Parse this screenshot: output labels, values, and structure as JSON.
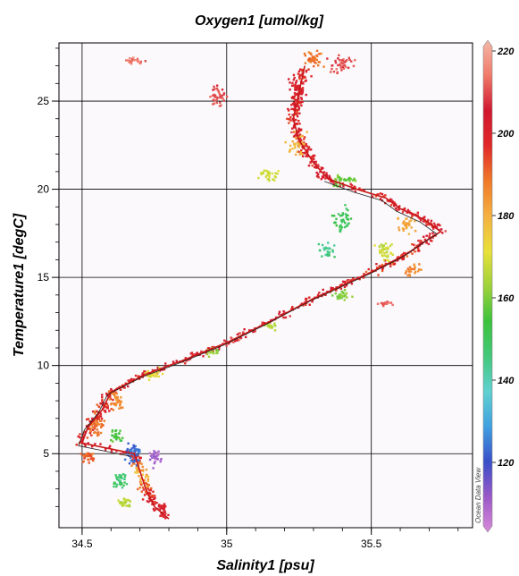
{
  "chart_data": {
    "type": "scatter",
    "title": "Oxygen1 [umol/kg]",
    "xlabel": "Salinity1 [psu]",
    "ylabel": "Temperature1 [degC]",
    "xlim": [
      34.42,
      35.85
    ],
    "ylim": [
      0.8,
      28.3
    ],
    "x_ticks": [
      34.5,
      35,
      35.5
    ],
    "x_tick_labels": [
      "34.5",
      "35",
      "35.5"
    ],
    "y_ticks": [
      5,
      10,
      15,
      20,
      25
    ],
    "y_tick_labels": [
      "5",
      "10",
      "15",
      "20",
      "25"
    ],
    "grid": true,
    "colorbar": {
      "variable": "Oxygen1 [umol/kg]",
      "range": [
        105,
        220
      ],
      "ticks": [
        120,
        140,
        160,
        180,
        200,
        220
      ],
      "tick_labels": [
        "120",
        "140",
        "160",
        "180",
        "200",
        "220"
      ],
      "colormap": [
        "#d98ad9",
        "#9b59c8",
        "#3a4fc8",
        "#3fa0e0",
        "#5fd0d0",
        "#42c87a",
        "#3cc23c",
        "#9ed23a",
        "#e8e03a",
        "#f5b040",
        "#f07a28",
        "#e02828",
        "#d01830",
        "#f07a6a",
        "#f4b8a8"
      ]
    },
    "watermark": "Ocean Data View",
    "profile_points": [
      {
        "s": 34.8,
        "t": 1.3,
        "o": 202
      },
      {
        "s": 34.75,
        "t": 2.0,
        "o": 205
      },
      {
        "s": 34.72,
        "t": 3.0,
        "o": 190
      },
      {
        "s": 34.7,
        "t": 4.0,
        "o": 178
      },
      {
        "s": 34.68,
        "t": 5.0,
        "o": 205
      },
      {
        "s": 34.5,
        "t": 5.6,
        "o": 200
      },
      {
        "s": 34.52,
        "t": 6.5,
        "o": 195
      },
      {
        "s": 34.57,
        "t": 7.5,
        "o": 195
      },
      {
        "s": 34.6,
        "t": 8.5,
        "o": 198
      },
      {
        "s": 34.72,
        "t": 9.5,
        "o": 200
      },
      {
        "s": 34.85,
        "t": 10.3,
        "o": 202
      },
      {
        "s": 35.0,
        "t": 11.3,
        "o": 205
      },
      {
        "s": 35.15,
        "t": 12.5,
        "o": 205
      },
      {
        "s": 35.3,
        "t": 13.8,
        "o": 200
      },
      {
        "s": 35.5,
        "t": 15.3,
        "o": 195
      },
      {
        "s": 35.62,
        "t": 16.3,
        "o": 195
      },
      {
        "s": 35.7,
        "t": 17.2,
        "o": 200
      },
      {
        "s": 35.74,
        "t": 17.6,
        "o": 205
      },
      {
        "s": 35.68,
        "t": 18.3,
        "o": 198
      },
      {
        "s": 35.6,
        "t": 18.9,
        "o": 200
      },
      {
        "s": 35.55,
        "t": 19.5,
        "o": 198
      },
      {
        "s": 35.45,
        "t": 20.0,
        "o": 200
      },
      {
        "s": 35.35,
        "t": 20.6,
        "o": 200
      },
      {
        "s": 35.3,
        "t": 21.5,
        "o": 200
      },
      {
        "s": 35.25,
        "t": 22.8,
        "o": 200
      },
      {
        "s": 35.23,
        "t": 24.0,
        "o": 198
      },
      {
        "s": 35.25,
        "t": 25.5,
        "o": 197
      },
      {
        "s": 35.27,
        "t": 27.0,
        "o": 195
      }
    ],
    "scatter_clusters": [
      {
        "s": 35.3,
        "t": 27.4,
        "o": 188,
        "ds": 0.05,
        "dt": 0.8,
        "n": 40
      },
      {
        "s": 35.4,
        "t": 27.0,
        "o": 208,
        "ds": 0.06,
        "dt": 1.0,
        "n": 40
      },
      {
        "s": 35.24,
        "t": 25.5,
        "o": 200,
        "ds": 0.05,
        "dt": 1.5,
        "n": 50
      },
      {
        "s": 34.97,
        "t": 25.3,
        "o": 208,
        "ds": 0.05,
        "dt": 1.0,
        "n": 35
      },
      {
        "s": 34.68,
        "t": 27.3,
        "o": 212,
        "ds": 0.05,
        "dt": 0.3,
        "n": 20
      },
      {
        "s": 35.25,
        "t": 22.5,
        "o": 178,
        "ds": 0.06,
        "dt": 1.0,
        "n": 35
      },
      {
        "s": 35.15,
        "t": 20.8,
        "o": 168,
        "ds": 0.07,
        "dt": 0.7,
        "n": 30
      },
      {
        "s": 35.4,
        "t": 20.5,
        "o": 158,
        "ds": 0.08,
        "dt": 0.8,
        "n": 35
      },
      {
        "s": 35.4,
        "t": 18.3,
        "o": 150,
        "ds": 0.06,
        "dt": 1.2,
        "n": 45
      },
      {
        "s": 35.35,
        "t": 16.5,
        "o": 145,
        "ds": 0.06,
        "dt": 0.7,
        "n": 30
      },
      {
        "s": 35.55,
        "t": 16.5,
        "o": 168,
        "ds": 0.06,
        "dt": 1.2,
        "n": 45
      },
      {
        "s": 35.62,
        "t": 18.0,
        "o": 180,
        "ds": 0.05,
        "dt": 0.8,
        "n": 35
      },
      {
        "s": 35.65,
        "t": 15.5,
        "o": 185,
        "ds": 0.05,
        "dt": 0.6,
        "n": 25
      },
      {
        "s": 35.4,
        "t": 14.0,
        "o": 160,
        "ds": 0.05,
        "dt": 0.5,
        "n": 25
      },
      {
        "s": 35.55,
        "t": 13.5,
        "o": 210,
        "ds": 0.04,
        "dt": 0.2,
        "n": 15
      },
      {
        "s": 35.15,
        "t": 12.2,
        "o": 165,
        "ds": 0.04,
        "dt": 0.4,
        "n": 20
      },
      {
        "s": 34.95,
        "t": 10.8,
        "o": 160,
        "ds": 0.04,
        "dt": 0.4,
        "n": 20
      },
      {
        "s": 34.75,
        "t": 9.5,
        "o": 170,
        "ds": 0.05,
        "dt": 0.5,
        "n": 25
      },
      {
        "s": 34.62,
        "t": 8.0,
        "o": 185,
        "ds": 0.05,
        "dt": 0.8,
        "n": 35
      },
      {
        "s": 34.55,
        "t": 6.5,
        "o": 188,
        "ds": 0.04,
        "dt": 0.8,
        "n": 35
      },
      {
        "s": 34.62,
        "t": 6.0,
        "o": 155,
        "ds": 0.04,
        "dt": 0.6,
        "n": 25
      },
      {
        "s": 34.52,
        "t": 4.8,
        "o": 190,
        "ds": 0.04,
        "dt": 0.5,
        "n": 30
      },
      {
        "s": 34.68,
        "t": 5.0,
        "o": 125,
        "ds": 0.04,
        "dt": 1.2,
        "n": 55
      },
      {
        "s": 34.75,
        "t": 4.8,
        "o": 112,
        "ds": 0.03,
        "dt": 0.8,
        "n": 30
      },
      {
        "s": 34.63,
        "t": 3.5,
        "o": 148,
        "ds": 0.04,
        "dt": 0.8,
        "n": 35
      },
      {
        "s": 34.65,
        "t": 2.3,
        "o": 165,
        "ds": 0.04,
        "dt": 0.6,
        "n": 25
      },
      {
        "s": 34.78,
        "t": 2.0,
        "o": 200,
        "ds": 0.02,
        "dt": 0.5,
        "n": 15
      }
    ]
  }
}
